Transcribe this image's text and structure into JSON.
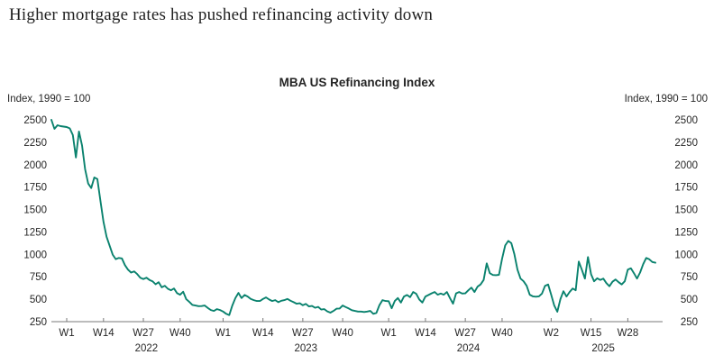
{
  "page_title": "Higher mortgage rates has pushed refinancing activity down",
  "chart_data": {
    "type": "line",
    "title": "MBA US Refinancing Index",
    "unit_label_left": "Index, 1990 = 100",
    "unit_label_right": "Index, 1990 = 100",
    "line_color": "#0a826e",
    "grid": false,
    "legend": "none",
    "ylim": [
      250,
      2500
    ],
    "yticks": [
      250,
      500,
      750,
      1000,
      1250,
      1500,
      1750,
      2000,
      2250,
      2500
    ],
    "x_unit": "week",
    "xticks": [
      {
        "label": "W1",
        "i": 5
      },
      {
        "label": "W14",
        "i": 17
      },
      {
        "label": "W27",
        "i": 30
      },
      {
        "label": "W40",
        "i": 42
      },
      {
        "label": "W1",
        "i": 56
      },
      {
        "label": "W14",
        "i": 69
      },
      {
        "label": "W27",
        "i": 82
      },
      {
        "label": "W40",
        "i": 95
      },
      {
        "label": "W1",
        "i": 110
      },
      {
        "label": "W14",
        "i": 122
      },
      {
        "label": "W27",
        "i": 135
      },
      {
        "label": "W40",
        "i": 147
      },
      {
        "label": "W2",
        "i": 163
      },
      {
        "label": "W15",
        "i": 176
      },
      {
        "label": "W28",
        "i": 188
      }
    ],
    "year_labels": [
      {
        "label": "2022",
        "i": 31
      },
      {
        "label": "2023",
        "i": 83
      },
      {
        "label": "2024",
        "i": 136
      },
      {
        "label": "2025",
        "i": 180
      }
    ],
    "values": [
      2500,
      2400,
      2440,
      2430,
      2425,
      2420,
      2405,
      2330,
      2080,
      2370,
      2215,
      1950,
      1790,
      1740,
      1857,
      1840,
      1597,
      1363,
      1197,
      1097,
      997,
      947,
      960,
      955,
      880,
      830,
      797,
      810,
      780,
      740,
      725,
      740,
      715,
      700,
      667,
      690,
      633,
      650,
      617,
      600,
      620,
      567,
      550,
      583,
      500,
      470,
      437,
      430,
      423,
      424,
      430,
      403,
      380,
      370,
      390,
      380,
      363,
      337,
      323,
      430,
      513,
      570,
      513,
      547,
      530,
      503,
      490,
      480,
      480,
      503,
      520,
      497,
      480,
      490,
      467,
      483,
      490,
      503,
      483,
      467,
      450,
      455,
      433,
      448,
      420,
      425,
      405,
      415,
      385,
      390,
      365,
      350,
      370,
      395,
      397,
      430,
      413,
      397,
      378,
      370,
      363,
      363,
      357,
      363,
      370,
      337,
      347,
      435,
      490,
      480,
      478,
      400,
      480,
      513,
      463,
      530,
      547,
      523,
      580,
      560,
      497,
      463,
      530,
      547,
      565,
      580,
      550,
      563,
      550,
      580,
      513,
      450,
      565,
      580,
      563,
      565,
      600,
      630,
      580,
      640,
      665,
      715,
      900,
      790,
      770,
      768,
      772,
      950,
      1100,
      1150,
      1125,
      1000,
      830,
      730,
      700,
      650,
      550,
      532,
      528,
      532,
      563,
      650,
      665,
      550,
      430,
      360,
      500,
      590,
      530,
      580,
      620,
      600,
      920,
      830,
      730,
      970,
      780,
      700,
      733,
      715,
      730,
      680,
      645,
      695,
      720,
      690,
      665,
      700,
      830,
      845,
      790,
      730,
      797,
      890,
      960,
      945,
      915,
      907
    ]
  }
}
